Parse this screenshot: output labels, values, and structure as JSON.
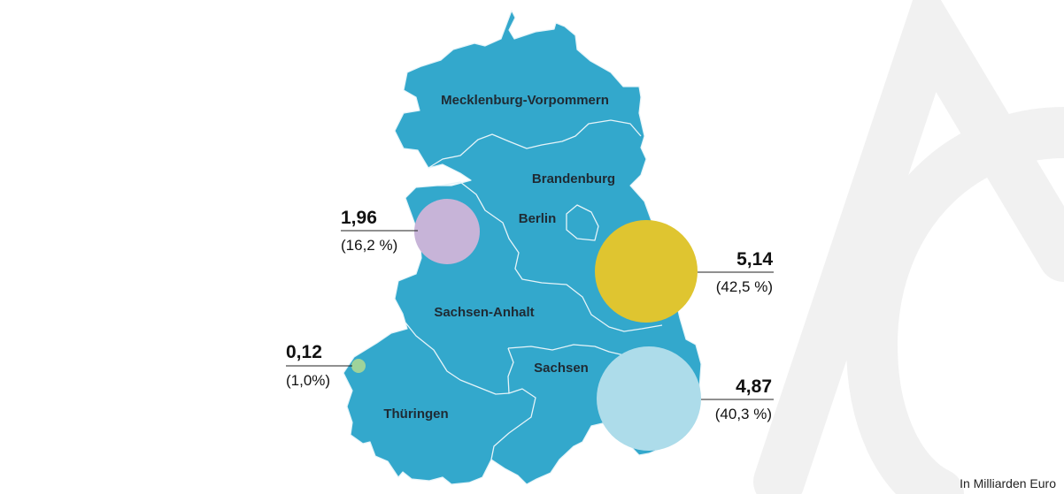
{
  "map": {
    "colors": {
      "land": "#33a8cc",
      "border": "#e6f4f9",
      "watermark": "#f1f1f1"
    },
    "regions": [
      {
        "id": "mv",
        "name": "Mecklenburg-Vorpommern"
      },
      {
        "id": "bb",
        "name": "Brandenburg"
      },
      {
        "id": "be",
        "name": "Berlin"
      },
      {
        "id": "st",
        "name": "Sachsen-Anhalt"
      },
      {
        "id": "sn",
        "name": "Sachsen"
      },
      {
        "id": "th",
        "name": "Thüringen"
      }
    ]
  },
  "bubbles": [
    {
      "id": "st",
      "value": "1,96",
      "share": "(16,2 %)",
      "amount": 1.96,
      "percent": 16.2,
      "color": "#c7b4d8"
    },
    {
      "id": "bb",
      "value": "5,14",
      "share": "(42,5 %)",
      "amount": 5.14,
      "percent": 42.5,
      "color": "#dfc530"
    },
    {
      "id": "th",
      "value": "0,12",
      "share": "(1,0%)",
      "amount": 0.12,
      "percent": 1.0,
      "color": "#9ed39a"
    },
    {
      "id": "sn",
      "value": "4,87",
      "share": "(40,3 %)",
      "amount": 4.87,
      "percent": 40.3,
      "color": "#addcea"
    }
  ],
  "unit_note": "In Milliarden Euro"
}
